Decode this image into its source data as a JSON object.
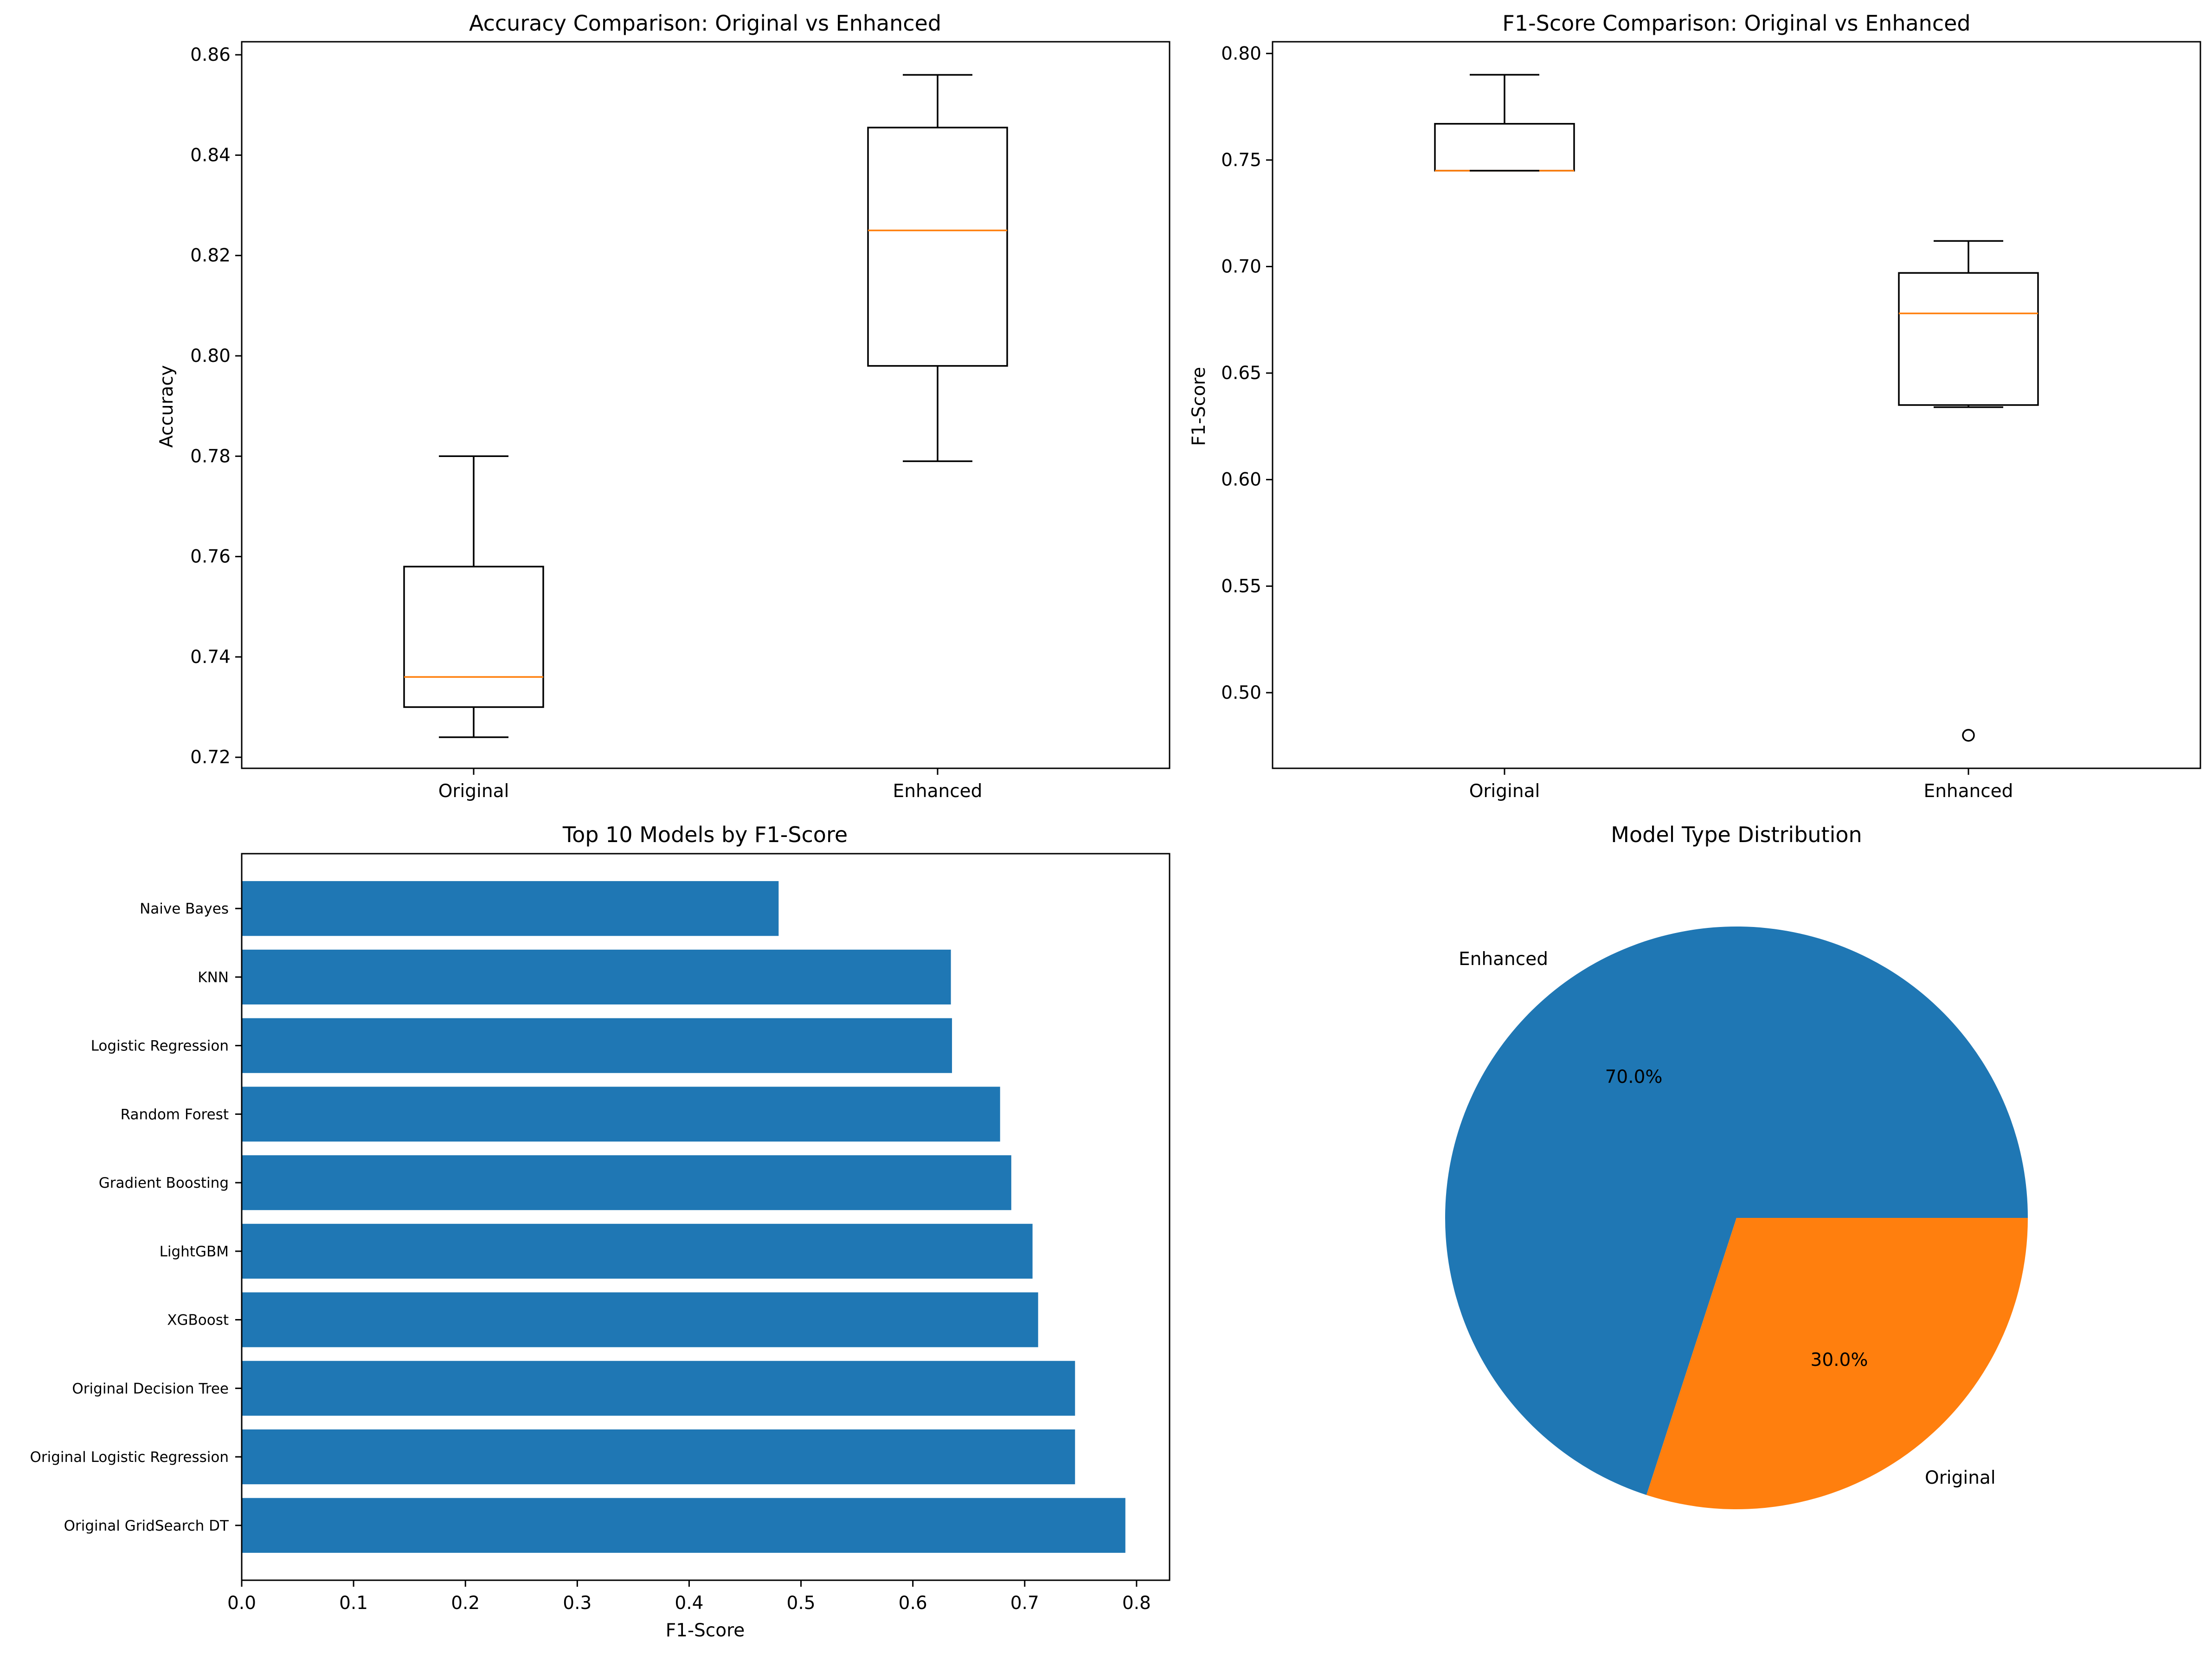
{
  "chart_data": [
    {
      "id": "accuracy_box",
      "type": "box",
      "title": "Accuracy Comparison: Original vs Enhanced",
      "xlabel": "",
      "ylabel": "Accuracy",
      "categories": [
        "Original",
        "Enhanced"
      ],
      "boxes": [
        {
          "category": "Original",
          "whisker_low": 0.724,
          "q1": 0.73,
          "median": 0.736,
          "q3": 0.758,
          "whisker_high": 0.78,
          "fliers": []
        },
        {
          "category": "Enhanced",
          "whisker_low": 0.779,
          "q1": 0.798,
          "median": 0.825,
          "q3": 0.8455,
          "whisker_high": 0.856,
          "fliers": []
        }
      ],
      "ylim": [
        0.7178,
        0.8626
      ],
      "yticks": [
        0.72,
        0.74,
        0.76,
        0.78,
        0.8,
        0.82,
        0.84,
        0.86
      ],
      "ytick_labels": [
        "0.72",
        "0.74",
        "0.76",
        "0.78",
        "0.80",
        "0.82",
        "0.84",
        "0.86"
      ],
      "colors": {
        "box": "#000000",
        "median": "#ff7f0e"
      }
    },
    {
      "id": "f1_box",
      "type": "box",
      "title": "F1-Score Comparison: Original vs Enhanced",
      "xlabel": "",
      "ylabel": "F1-Score",
      "categories": [
        "Original",
        "Enhanced"
      ],
      "boxes": [
        {
          "category": "Original",
          "whisker_low": 0.745,
          "q1": 0.745,
          "median": 0.745,
          "q3": 0.767,
          "whisker_high": 0.79,
          "fliers": []
        },
        {
          "category": "Enhanced",
          "whisker_low": 0.634,
          "q1": 0.635,
          "median": 0.678,
          "q3": 0.697,
          "whisker_high": 0.712,
          "fliers": [
            0.48
          ]
        }
      ],
      "ylim": [
        0.4645,
        0.8055
      ],
      "yticks": [
        0.5,
        0.55,
        0.6,
        0.65,
        0.7,
        0.75,
        0.8
      ],
      "ytick_labels": [
        "0.50",
        "0.55",
        "0.60",
        "0.65",
        "0.70",
        "0.75",
        "0.80"
      ],
      "colors": {
        "box": "#000000",
        "median": "#ff7f0e"
      }
    },
    {
      "id": "top10_bar",
      "type": "bar",
      "orientation": "horizontal",
      "title": "Top 10 Models by F1-Score",
      "xlabel": "F1-Score",
      "ylabel": "",
      "categories": [
        "Original GridSearch DT",
        "Original Logistic Regression",
        "Original Decision Tree",
        "XGBoost",
        "LightGBM",
        "Gradient Boosting",
        "Random Forest",
        "Logistic Regression",
        "KNN",
        "Naive Bayes"
      ],
      "values": [
        0.79,
        0.745,
        0.745,
        0.712,
        0.707,
        0.688,
        0.678,
        0.635,
        0.634,
        0.48
      ],
      "xlim": [
        0,
        0.8295
      ],
      "xticks": [
        0.0,
        0.1,
        0.2,
        0.3,
        0.4,
        0.5,
        0.6,
        0.7,
        0.8
      ],
      "xtick_labels": [
        "0.0",
        "0.1",
        "0.2",
        "0.3",
        "0.4",
        "0.5",
        "0.6",
        "0.7",
        "0.8"
      ],
      "colors": {
        "bar": "#1f77b4"
      }
    },
    {
      "id": "type_pie",
      "type": "pie",
      "title": "Model Type Distribution",
      "labels": [
        "Enhanced",
        "Original"
      ],
      "values": [
        70.0,
        30.0
      ],
      "autopct_labels": [
        "70.0%",
        "30.0%"
      ],
      "start_angle_deg": 0,
      "colors": [
        "#1f77b4",
        "#ff7f0e"
      ]
    }
  ]
}
